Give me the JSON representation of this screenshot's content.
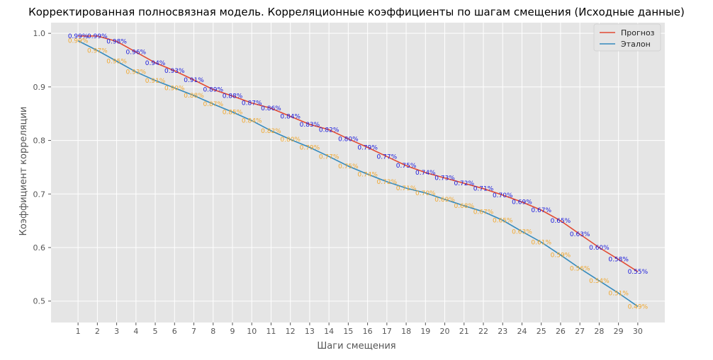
{
  "chart_data": {
    "type": "line",
    "title": "Корректированная полносвязная модель. Корреляционные коэффициенты по шагам смещения (Исходные данные)",
    "xlabel": "Шаги смещения",
    "ylabel": "Коэффициент корреляции",
    "x": [
      1,
      2,
      3,
      4,
      5,
      6,
      7,
      8,
      9,
      10,
      11,
      12,
      13,
      14,
      15,
      16,
      17,
      18,
      19,
      20,
      21,
      22,
      23,
      24,
      25,
      26,
      27,
      28,
      29,
      30
    ],
    "xlim": [
      -0.4,
      31.4
    ],
    "ylim": [
      0.46,
      1.02
    ],
    "yticks": [
      0.5,
      0.6,
      0.7,
      0.8,
      0.9,
      1.0
    ],
    "ytick_labels": [
      "0.5",
      "0.6",
      "0.7",
      "0.8",
      "0.9",
      "1.0"
    ],
    "grid": true,
    "legend_position": "top-right",
    "series": [
      {
        "name": "Прогноз",
        "color": "#e24a33",
        "label_color": "#1a1adb",
        "values": [
          0.995,
          0.995,
          0.985,
          0.965,
          0.945,
          0.93,
          0.913,
          0.895,
          0.883,
          0.87,
          0.86,
          0.845,
          0.83,
          0.82,
          0.803,
          0.787,
          0.77,
          0.753,
          0.74,
          0.73,
          0.72,
          0.71,
          0.698,
          0.685,
          0.67,
          0.65,
          0.625,
          0.6,
          0.578,
          0.555
        ],
        "labels": [
          "0.99%",
          "0.99%",
          "0.98%",
          "0.96%",
          "0.94%",
          "0.93%",
          "0.91%",
          "0.89%",
          "0.88%",
          "0.87%",
          "0.86%",
          "0.84%",
          "0.83%",
          "0.82%",
          "0.80%",
          "0.79%",
          "0.77%",
          "0.75%",
          "0.74%",
          "0.73%",
          "0.72%",
          "0.71%",
          "0.70%",
          "0.69%",
          "0.67%",
          "0.65%",
          "0.63%",
          "0.60%",
          "0.58%",
          "0.55%"
        ]
      },
      {
        "name": "Эталон",
        "color": "#348abd",
        "label_color": "#f0a830",
        "values": [
          0.986,
          0.968,
          0.948,
          0.928,
          0.912,
          0.898,
          0.884,
          0.868,
          0.853,
          0.837,
          0.818,
          0.802,
          0.787,
          0.77,
          0.752,
          0.737,
          0.723,
          0.711,
          0.702,
          0.69,
          0.678,
          0.667,
          0.651,
          0.63,
          0.61,
          0.586,
          0.561,
          0.538,
          0.515,
          0.49
        ],
        "labels": [
          "0.99%",
          "0.97%",
          "0.95%",
          "0.93%",
          "0.91%",
          "0.90%",
          "0.88%",
          "0.87%",
          "0.85%",
          "0.84%",
          "0.82%",
          "0.80%",
          "0.79%",
          "0.77%",
          "0.75%",
          "0.74%",
          "0.72%",
          "0.71%",
          "0.70%",
          "0.69%",
          "0.68%",
          "0.67%",
          "0.65%",
          "0.63%",
          "0.61%",
          "0.59%",
          "0.56%",
          "0.54%",
          "0.51%",
          "0.49%"
        ]
      }
    ]
  }
}
